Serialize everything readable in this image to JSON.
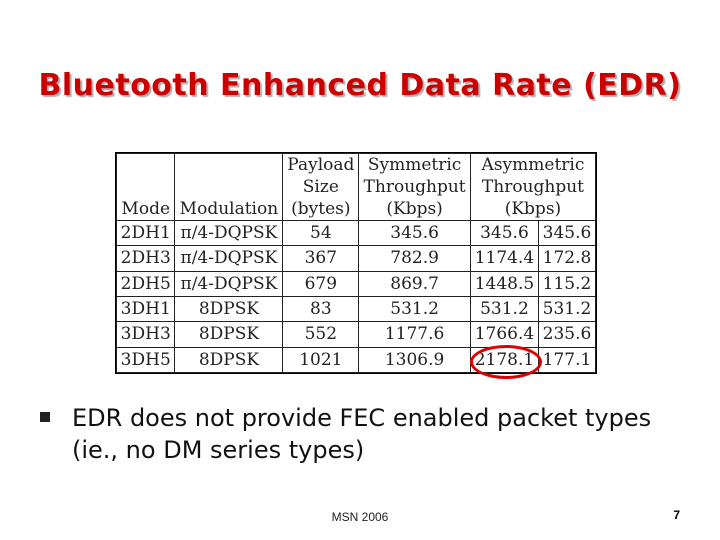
{
  "slide": {
    "title": "Bluetooth Enhanced Data Rate (EDR)",
    "footer": "MSN 2006",
    "page_number": "7"
  },
  "table": {
    "headers": {
      "mode": "Mode",
      "modulation": "Modulation",
      "payload": [
        "Payload",
        "Size",
        "(bytes)"
      ],
      "symmetric": [
        "Symmetric",
        "Throughput",
        "(Kbps)"
      ],
      "asymmetric": [
        "Asymmetric",
        "Throughput",
        "(Kbps)"
      ]
    },
    "rows": [
      {
        "mode": "2DH1",
        "modulation": "π/4-DQPSK",
        "payload": "54",
        "symmetric": "345.6",
        "asym_a": "345.6",
        "asym_b": "345.6"
      },
      {
        "mode": "2DH3",
        "modulation": "π/4-DQPSK",
        "payload": "367",
        "symmetric": "782.9",
        "asym_a": "1174.4",
        "asym_b": "172.8"
      },
      {
        "mode": "2DH5",
        "modulation": "π/4-DQPSK",
        "payload": "679",
        "symmetric": "869.7",
        "asym_a": "1448.5",
        "asym_b": "115.2"
      },
      {
        "mode": "3DH1",
        "modulation": "8DPSK",
        "payload": "83",
        "symmetric": "531.2",
        "asym_a": "531.2",
        "asym_b": "531.2"
      },
      {
        "mode": "3DH3",
        "modulation": "8DPSK",
        "payload": "552",
        "symmetric": "1177.6",
        "asym_a": "1766.4",
        "asym_b": "235.6"
      },
      {
        "mode": "3DH5",
        "modulation": "8DPSK",
        "payload": "1021",
        "symmetric": "1306.9",
        "asym_a": "2178.1",
        "asym_b": "177.1"
      }
    ],
    "highlight_color": "#dd0000"
  },
  "bullets": [
    "EDR does not provide FEC enabled packet types (ie., no DM series types)"
  ]
}
